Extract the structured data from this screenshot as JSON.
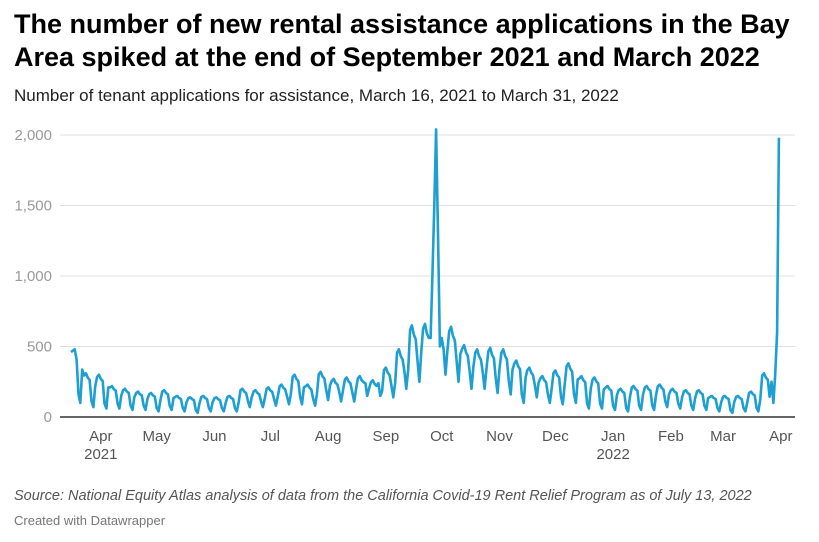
{
  "chart_data": {
    "type": "line",
    "title": "The number of new rental assistance applications in the Bay Area spiked at the end of September 2021 and March 2022",
    "subtitle": "Number of tenant applications for assistance, March 16, 2021 to March 31, 2022",
    "xlabel": "",
    "ylabel": "",
    "ylim": [
      0,
      2000
    ],
    "y_ticks": [
      0,
      500,
      1000,
      1500,
      2000
    ],
    "y_tick_labels": [
      "0",
      "500",
      "1,000",
      "1,500",
      "2,000"
    ],
    "x_domain_days": [
      0,
      380
    ],
    "x_start_date": "2021-03-16",
    "x_ticks": [
      {
        "day": 16,
        "label": "Apr",
        "year": "2021"
      },
      {
        "day": 46,
        "label": "May"
      },
      {
        "day": 77,
        "label": "Jun"
      },
      {
        "day": 107,
        "label": "Jul"
      },
      {
        "day": 138,
        "label": "Aug"
      },
      {
        "day": 169,
        "label": "Sep"
      },
      {
        "day": 199,
        "label": "Oct"
      },
      {
        "day": 230,
        "label": "Nov"
      },
      {
        "day": 260,
        "label": "Dec"
      },
      {
        "day": 291,
        "label": "Jan",
        "year": "2022"
      },
      {
        "day": 322,
        "label": "Feb"
      },
      {
        "day": 350,
        "label": "Mar"
      },
      {
        "day": 381,
        "label": "Apr"
      }
    ],
    "weekly_peak": [
      480,
      310,
      300,
      220,
      200,
      180,
      170,
      190,
      150,
      140,
      150,
      140,
      150,
      200,
      190,
      210,
      230,
      300,
      230,
      320,
      270,
      280,
      290,
      260,
      350,
      480,
      650,
      660,
      660,
      640,
      510,
      480,
      490,
      480,
      400,
      350,
      290,
      330,
      380,
      290,
      280,
      220,
      200,
      220,
      220,
      230,
      200,
      190,
      190,
      150,
      150,
      150,
      180,
      310
    ],
    "weekly_trough": [
      100,
      70,
      60,
      60,
      50,
      50,
      40,
      50,
      40,
      30,
      40,
      40,
      40,
      70,
      70,
      80,
      90,
      90,
      80,
      120,
      110,
      110,
      150,
      150,
      140,
      200,
      250,
      350,
      300,
      250,
      200,
      200,
      170,
      160,
      100,
      140,
      100,
      90,
      100,
      60,
      60,
      50,
      40,
      50,
      50,
      70,
      60,
      50,
      50,
      40,
      30,
      40,
      40,
      90
    ],
    "overrides": [
      [
        0,
        460
      ],
      [
        1,
        470
      ],
      [
        2,
        480
      ],
      [
        194,
        1000
      ],
      [
        195,
        1500
      ],
      [
        196,
        2040
      ],
      [
        197,
        1300
      ],
      [
        198,
        500
      ],
      [
        376,
        250
      ],
      [
        377,
        100
      ],
      [
        378,
        300
      ],
      [
        379,
        600
      ],
      [
        380,
        1980
      ]
    ],
    "color": "#1d9fd1",
    "grid": true,
    "legend": "none"
  },
  "source": "Source: National Equity Atlas analysis of data from the California Covid-19 Rent Relief Program as of July 13, 2022",
  "credit": "Created with Datawrapper"
}
